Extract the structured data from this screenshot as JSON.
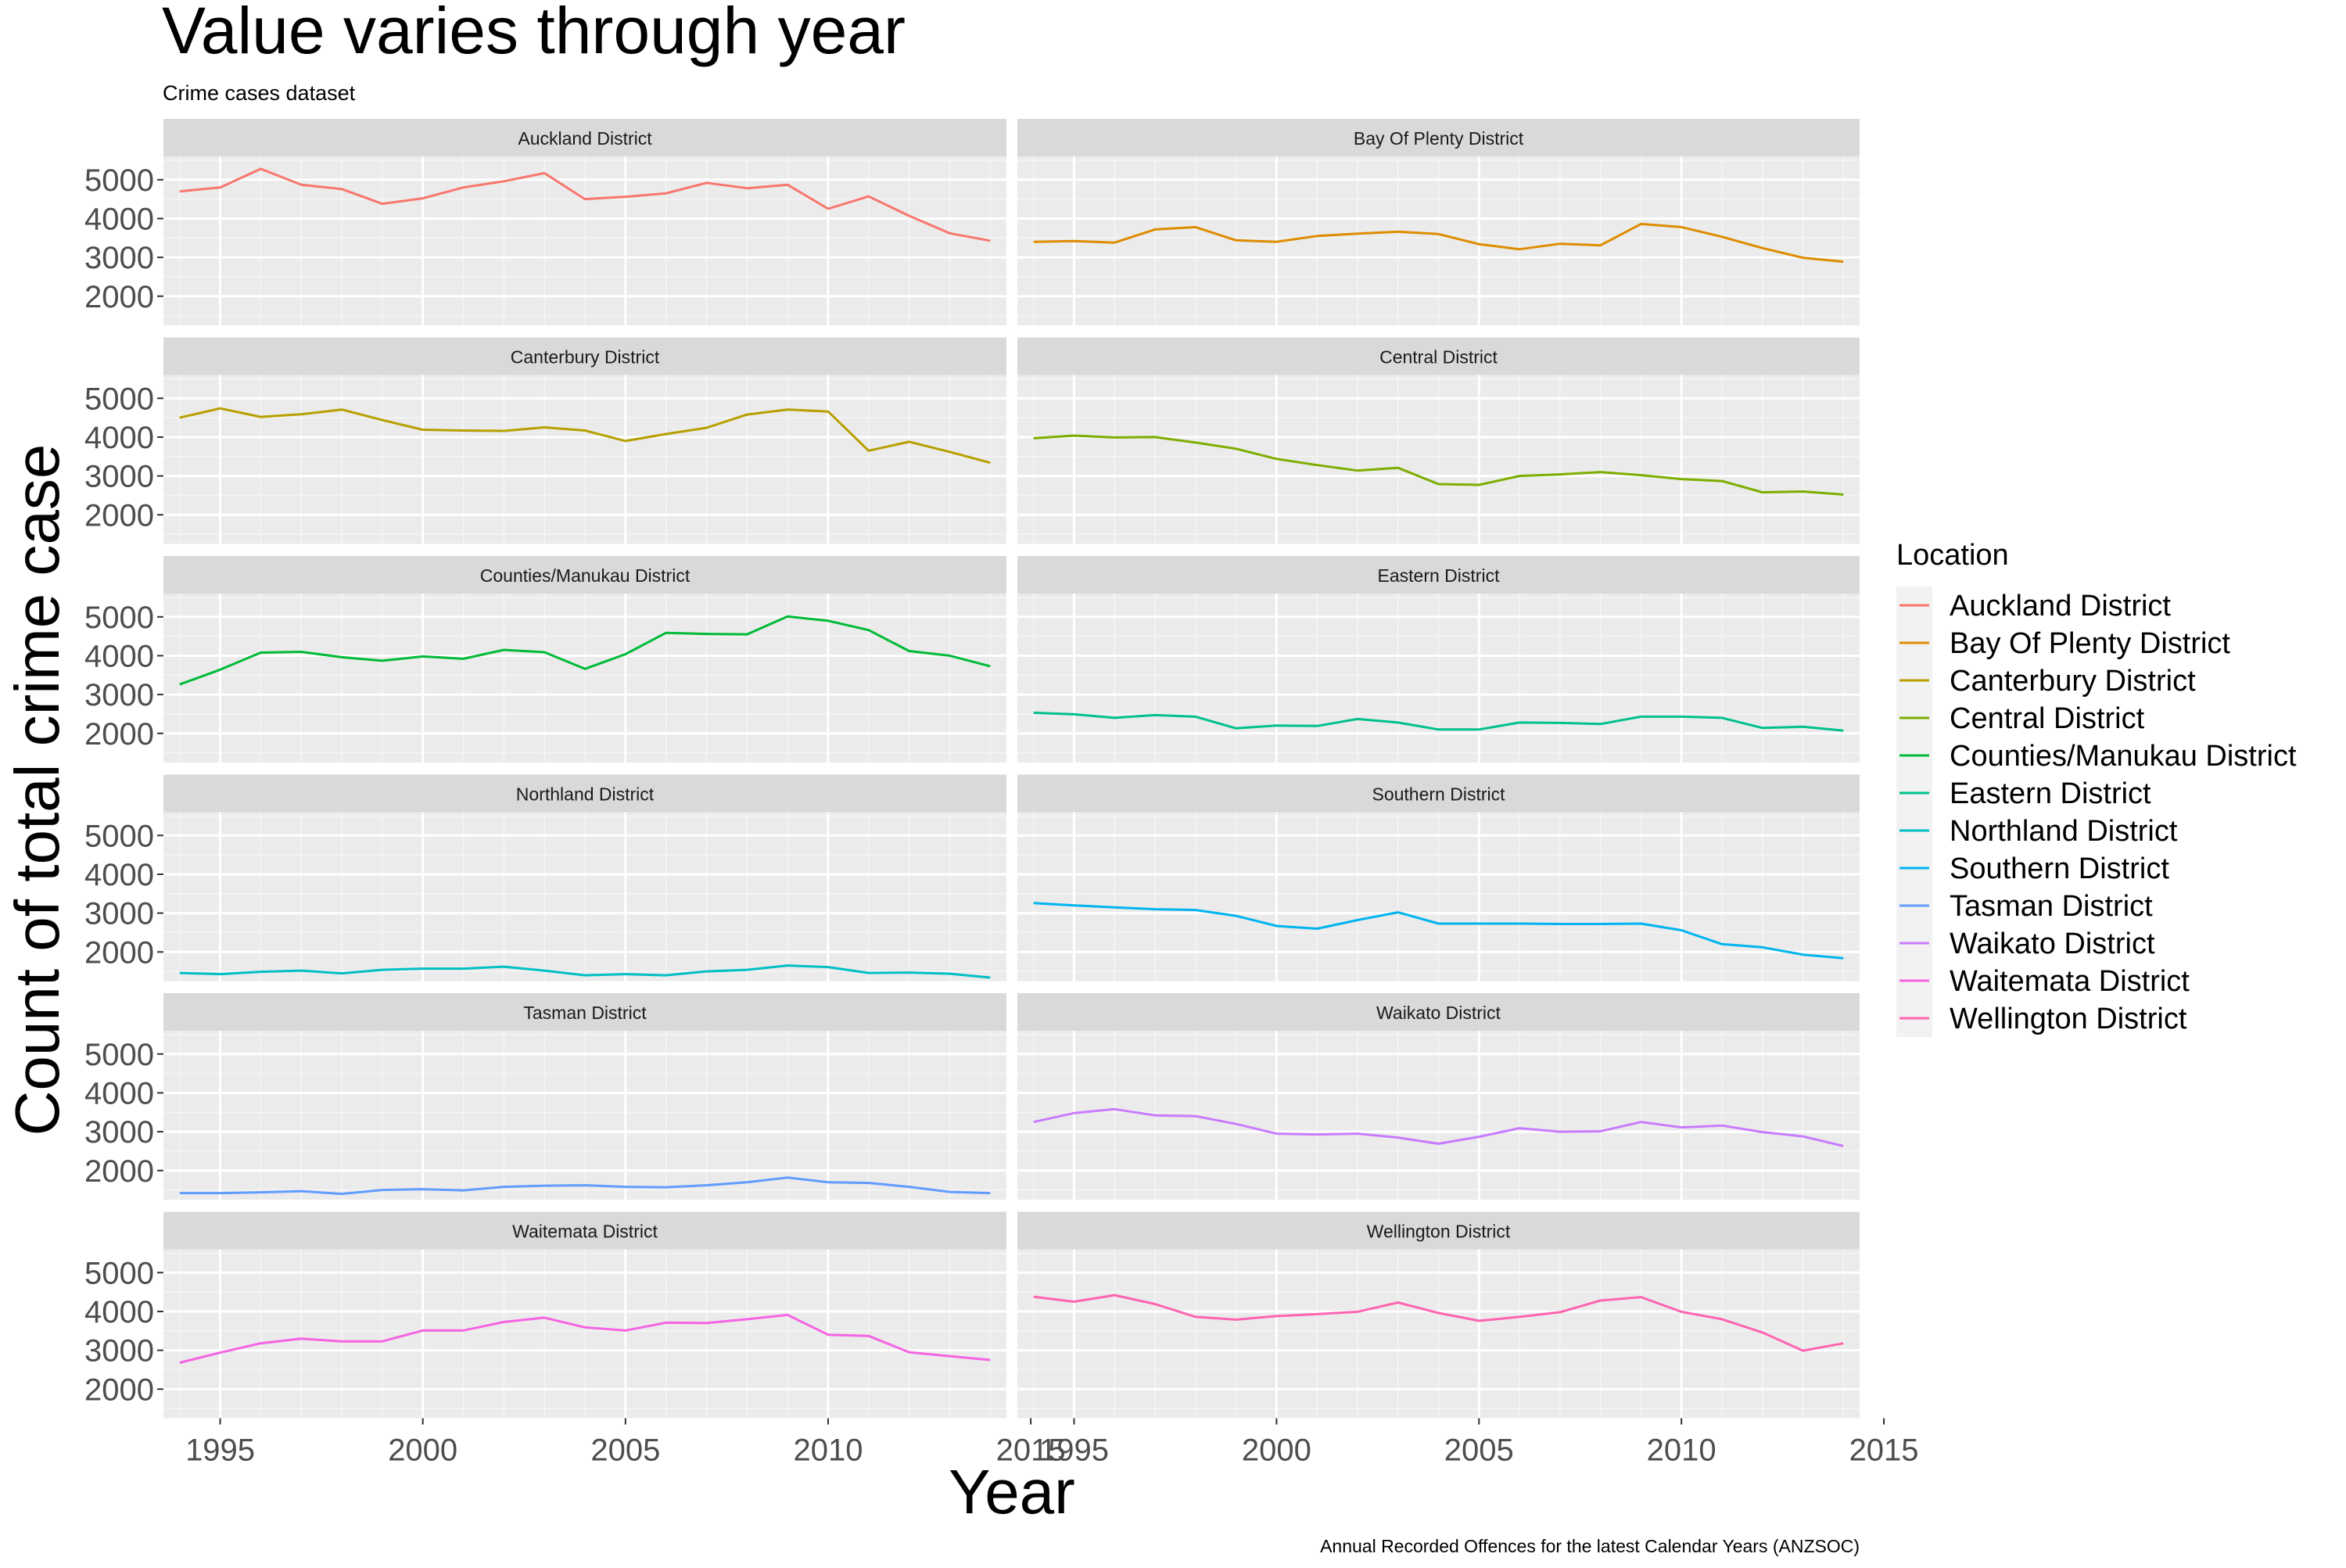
{
  "chart_data": {
    "type": "line",
    "title": "Value varies through year",
    "subtitle": "Crime cases dataset",
    "xlabel": "Year",
    "ylabel": "Count of total crime case",
    "caption": "Annual Recorded Offences for the latest Calendar Years (ANZSOC)",
    "legend_title": "Location",
    "legend_position": "right",
    "xlim": [
      1993.6,
      2014.4
    ],
    "ylim": [
      1250,
      5600
    ],
    "x_ticks": [
      1995,
      2000,
      2005,
      2010,
      2015
    ],
    "y_ticks": [
      2000,
      3000,
      4000,
      5000
    ],
    "grid": true,
    "facets": "2 columns x 6 rows",
    "x": [
      1994,
      1995,
      1996,
      1997,
      1998,
      1999,
      2000,
      2001,
      2002,
      2003,
      2004,
      2005,
      2006,
      2007,
      2008,
      2009,
      2010,
      2011,
      2012,
      2013,
      2014
    ],
    "series": [
      {
        "name": "Auckland District",
        "color": "#F8766D",
        "values": [
          4700,
          4800,
          5280,
          4870,
          4760,
          4380,
          4520,
          4800,
          4960,
          5170,
          4500,
          4560,
          4650,
          4920,
          4780,
          4870,
          4250,
          4570,
          4070,
          3620,
          3430
        ]
      },
      {
        "name": "Bay Of Plenty District",
        "color": "#DE8C00",
        "values": [
          3400,
          3420,
          3380,
          3720,
          3780,
          3440,
          3400,
          3550,
          3610,
          3660,
          3600,
          3340,
          3210,
          3350,
          3310,
          3860,
          3780,
          3530,
          3240,
          2990,
          2890
        ]
      },
      {
        "name": "Canterbury District",
        "color": "#B79F00",
        "values": [
          4500,
          4740,
          4520,
          4590,
          4710,
          4440,
          4190,
          4170,
          4160,
          4250,
          4170,
          3900,
          4080,
          4240,
          4580,
          4710,
          4660,
          3650,
          3880,
          3620,
          3340
        ]
      },
      {
        "name": "Central District",
        "color": "#7CAE00",
        "values": [
          3970,
          4040,
          3990,
          4000,
          3860,
          3700,
          3440,
          3280,
          3140,
          3210,
          2790,
          2770,
          3000,
          3040,
          3100,
          3020,
          2920,
          2870,
          2580,
          2600,
          2520
        ]
      },
      {
        "name": "Counties/Manukau District",
        "color": "#00BA38",
        "values": [
          3260,
          3640,
          4080,
          4100,
          3960,
          3870,
          3980,
          3920,
          4150,
          4090,
          3660,
          4040,
          4590,
          4560,
          4550,
          5010,
          4900,
          4660,
          4120,
          4000,
          3730
        ]
      },
      {
        "name": "Eastern District",
        "color": "#00C08B",
        "values": [
          2530,
          2490,
          2400,
          2470,
          2430,
          2130,
          2200,
          2190,
          2370,
          2280,
          2100,
          2100,
          2280,
          2270,
          2240,
          2430,
          2430,
          2400,
          2140,
          2170,
          2070
        ]
      },
      {
        "name": "Northland District",
        "color": "#00BFC4",
        "values": [
          1460,
          1430,
          1490,
          1520,
          1450,
          1540,
          1570,
          1570,
          1620,
          1520,
          1400,
          1430,
          1400,
          1500,
          1540,
          1650,
          1610,
          1460,
          1470,
          1440,
          1340
        ]
      },
      {
        "name": "Southern District",
        "color": "#00B4F0",
        "values": [
          3260,
          3200,
          3150,
          3100,
          3080,
          2930,
          2670,
          2600,
          2820,
          3020,
          2730,
          2730,
          2730,
          2720,
          2720,
          2730,
          2560,
          2200,
          2120,
          1930,
          1840
        ]
      },
      {
        "name": "Tasman District",
        "color": "#619CFF",
        "values": [
          1420,
          1420,
          1440,
          1470,
          1400,
          1500,
          1520,
          1490,
          1580,
          1610,
          1620,
          1580,
          1570,
          1620,
          1700,
          1820,
          1700,
          1680,
          1580,
          1450,
          1420
        ]
      },
      {
        "name": "Waikato District",
        "color": "#C77CFF",
        "values": [
          3250,
          3480,
          3580,
          3420,
          3400,
          3200,
          2950,
          2930,
          2950,
          2850,
          2690,
          2870,
          3090,
          3000,
          3010,
          3250,
          3110,
          3160,
          2990,
          2880,
          2630
        ]
      },
      {
        "name": "Waitemata District",
        "color": "#F564E3",
        "values": [
          2680,
          2940,
          3180,
          3300,
          3230,
          3230,
          3510,
          3510,
          3730,
          3840,
          3590,
          3510,
          3710,
          3700,
          3800,
          3910,
          3400,
          3370,
          2950,
          2850,
          2750
        ]
      },
      {
        "name": "Wellington District",
        "color": "#FF64B0",
        "values": [
          4380,
          4250,
          4420,
          4190,
          3860,
          3790,
          3880,
          3930,
          3990,
          4230,
          3960,
          3760,
          3860,
          3980,
          4280,
          4370,
          3990,
          3800,
          3460,
          2990,
          3180
        ]
      }
    ]
  }
}
